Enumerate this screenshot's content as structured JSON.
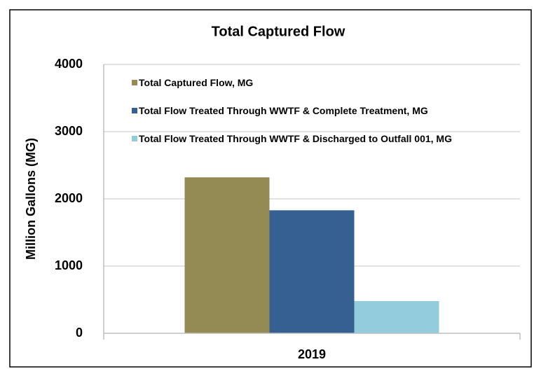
{
  "chart_data": {
    "type": "bar",
    "title": "Total Captured Flow",
    "y_label": "Million Gallons (MG)",
    "categories": [
      "2019"
    ],
    "series": [
      {
        "name": "Total Captured Flow, MG",
        "color": "#948a54",
        "values": [
          2320
        ]
      },
      {
        "name": "Total Flow Treated Through WWTF & Complete Treatment, MG",
        "color": "#376092",
        "values": [
          1830
        ]
      },
      {
        "name": "Total Flow Treated Through WWTF & Discharged to Outfall 001, MG",
        "color": "#93cddd",
        "values": [
          480
        ]
      }
    ],
    "ylim": [
      0,
      4000
    ],
    "yticks": [
      0,
      1000,
      2000,
      3000,
      4000
    ],
    "grid": true
  }
}
